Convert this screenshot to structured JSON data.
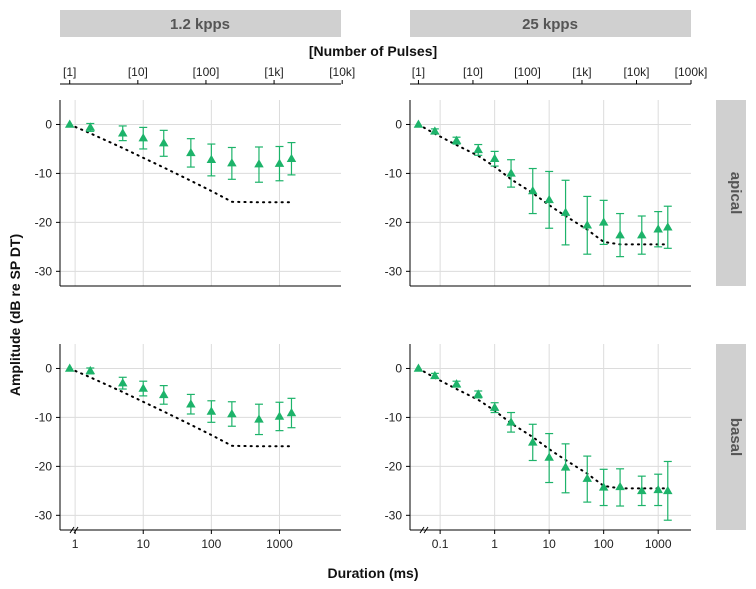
{
  "chart_data": {
    "type": "scatter",
    "title": "",
    "xlabel": "Duration (ms)",
    "ylabel": "Amplitude (dB re SP DT)",
    "top_axis_label": "[Number of Pulses]",
    "column_strips": [
      "1.2 kpps",
      "25 kpps"
    ],
    "row_strips": [
      "apical",
      "basal"
    ],
    "ylim": [
      -33,
      5
    ],
    "yticks": [
      0,
      -10,
      -20,
      -30
    ],
    "x_scale": "log",
    "grid": true,
    "colors": {
      "marker": "#1db36a",
      "strip_bg": "#d0d0d0",
      "strip_text": "#555555",
      "grid": "#dcdcdc",
      "dotted_line": "#000000"
    },
    "columns": [
      {
        "label": "1.2 kpps",
        "xlim": [
          0.6,
          8000
        ],
        "bottom_ticks": [
          1,
          10,
          100,
          1000
        ],
        "bottom_tick_labels": [
          "1",
          "10",
          "100",
          "1000"
        ],
        "top_ticks": [
          0.833,
          8.33,
          83.3,
          833,
          8333
        ],
        "top_tick_labels": [
          "[1]",
          "[10]",
          "[100]",
          "[1k]",
          "[10k]"
        ],
        "x": [
          0.833,
          1.67,
          5,
          10,
          20,
          50,
          100,
          200,
          500,
          1000,
          1500
        ]
      },
      {
        "label": "25 kpps",
        "xlim": [
          0.028,
          4000
        ],
        "bottom_ticks": [
          0.1,
          1,
          10,
          100,
          1000
        ],
        "bottom_tick_labels": [
          "0.1",
          "1",
          "10",
          "100",
          "1000"
        ],
        "top_ticks": [
          0.04,
          0.4,
          4,
          40,
          400,
          4000
        ],
        "top_tick_labels": [
          "[1]",
          "[10]",
          "[100]",
          "[1k]",
          "[10k]",
          "[100k]"
        ],
        "x": [
          0.04,
          0.08,
          0.2,
          0.5,
          1,
          2,
          5,
          10,
          20,
          50,
          100,
          200,
          500,
          1000,
          1500
        ]
      }
    ],
    "panels": [
      {
        "row": "apical",
        "column": "1.2 kpps",
        "y": [
          0,
          -0.6,
          -1.8,
          -2.8,
          -3.8,
          -5.8,
          -7.2,
          -7.9,
          -8.1,
          -8.0,
          -7.0
        ],
        "ymin": [
          0,
          -1.4,
          -3.3,
          -5.0,
          -6.5,
          -8.7,
          -10.5,
          -11.2,
          -11.8,
          -11.5,
          -10.3
        ],
        "ymax": [
          0,
          0.2,
          -0.3,
          -0.6,
          -1.2,
          -2.9,
          -4.0,
          -4.7,
          -4.6,
          -4.5,
          -3.7
        ],
        "reference_line": {
          "x": [
            0.833,
            1.67,
            5,
            10,
            20,
            50,
            100,
            200,
            500,
            1000,
            1500
          ],
          "y": [
            0,
            -1.8,
            -4.8,
            -6.8,
            -8.8,
            -11.5,
            -13.6,
            -15.8,
            -15.9,
            -15.9,
            -15.9
          ]
        }
      },
      {
        "row": "apical",
        "column": "25 kpps",
        "y": [
          0,
          -1.4,
          -3.3,
          -5.2,
          -7.0,
          -10.0,
          -13.6,
          -15.4,
          -18.0,
          -20.6,
          -20.0,
          -22.6,
          -22.6,
          -21.4,
          -21.0
        ],
        "ymin": [
          0,
          -1.9,
          -4.0,
          -6.3,
          -8.5,
          -12.8,
          -18.2,
          -21.2,
          -24.6,
          -26.5,
          -24.5,
          -27.0,
          -26.5,
          -25.0,
          -25.3
        ],
        "ymax": [
          0,
          -0.9,
          -2.6,
          -4.1,
          -5.5,
          -7.2,
          -9.0,
          -9.6,
          -11.4,
          -14.7,
          -15.5,
          -18.2,
          -18.7,
          -17.8,
          -16.7
        ],
        "reference_line": {
          "x": [
            0.04,
            0.08,
            0.2,
            0.5,
            1,
            2,
            5,
            10,
            20,
            50,
            100,
            200,
            500,
            1000,
            1500
          ],
          "y": [
            0,
            -1.9,
            -4.2,
            -6.4,
            -8.6,
            -11.2,
            -14.0,
            -16.5,
            -18.7,
            -21.5,
            -24.0,
            -24.5,
            -24.5,
            -24.5,
            -24.5
          ]
        }
      },
      {
        "row": "basal",
        "column": "1.2 kpps",
        "y": [
          0,
          -0.5,
          -3.0,
          -4.1,
          -5.4,
          -7.3,
          -8.8,
          -9.3,
          -10.4,
          -9.8,
          -9.1
        ],
        "ymin": [
          0,
          -1.1,
          -4.2,
          -5.6,
          -7.3,
          -9.3,
          -11.0,
          -11.8,
          -13.5,
          -12.7,
          -12.1
        ],
        "ymax": [
          0,
          0.1,
          -1.8,
          -2.6,
          -3.5,
          -5.3,
          -6.6,
          -6.8,
          -7.3,
          -6.9,
          -6.1
        ],
        "reference_line": {
          "x": [
            0.833,
            1.67,
            5,
            10,
            20,
            50,
            100,
            200,
            500,
            1000,
            1500
          ],
          "y": [
            0,
            -1.8,
            -4.8,
            -6.8,
            -8.8,
            -11.5,
            -13.6,
            -15.8,
            -15.9,
            -15.9,
            -15.9
          ]
        }
      },
      {
        "row": "basal",
        "column": "25 kpps",
        "y": [
          0,
          -1.5,
          -3.2,
          -5.3,
          -8.0,
          -11.0,
          -15.1,
          -18.2,
          -20.2,
          -22.5,
          -24.3,
          -24.2,
          -25.0,
          -24.8,
          -25.0
        ],
        "ymin": [
          0,
          -2.0,
          -3.8,
          -6.0,
          -9.0,
          -13.0,
          -18.8,
          -23.3,
          -25.4,
          -27.3,
          -28.0,
          -28.1,
          -28.0,
          -28.0,
          -31.0
        ],
        "ymax": [
          0,
          -1.0,
          -2.6,
          -4.6,
          -7.0,
          -9.0,
          -11.4,
          -13.3,
          -15.4,
          -17.9,
          -20.6,
          -20.5,
          -22.0,
          -21.6,
          -19.0
        ],
        "reference_line": {
          "x": [
            0.04,
            0.08,
            0.2,
            0.5,
            1,
            2,
            5,
            10,
            20,
            50,
            100,
            200,
            500,
            1000,
            1500
          ],
          "y": [
            0,
            -1.9,
            -4.2,
            -6.4,
            -8.6,
            -11.2,
            -14.0,
            -16.5,
            -18.7,
            -21.5,
            -24.0,
            -24.5,
            -24.5,
            -24.5,
            -24.5
          ]
        }
      }
    ]
  }
}
